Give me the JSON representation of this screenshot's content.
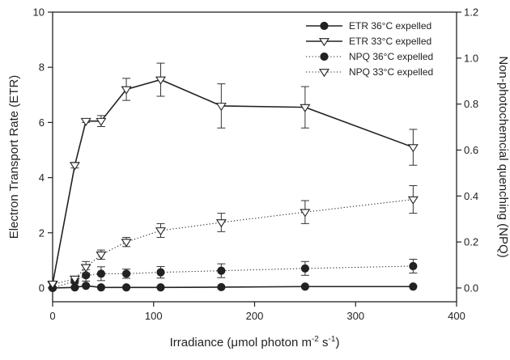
{
  "chart_data": {
    "type": "line",
    "xlabel": "Irradiance (μmol photon m-2 s-1)",
    "ylabel_left": "Electron Transport Rate (ETR)",
    "ylabel_right": "Non-photochemcial quenching (NPQ)",
    "xlim": [
      0,
      400
    ],
    "ylim_left": [
      -0.5,
      10
    ],
    "ylim_right": [
      -0.06,
      1.2
    ],
    "x_ticks": [
      0,
      100,
      200,
      300,
      400
    ],
    "y_left_ticks": [
      0,
      2,
      4,
      6,
      8,
      10
    ],
    "y_right_ticks": [
      "0.0",
      "0.2",
      "0.4",
      "0.6",
      "0.8",
      "1.0",
      "1.2"
    ],
    "grid": false,
    "legend_position": "top-right",
    "series": [
      {
        "name": "ETR 36°C expelled",
        "axis": "left",
        "marker": "filled-circle",
        "line": "solid",
        "x": [
          0,
          22,
          33,
          48,
          73,
          107,
          167,
          250,
          357
        ],
        "y": [
          0,
          0.02,
          0.08,
          0.02,
          0.02,
          0.02,
          0.03,
          0.05,
          0.05
        ],
        "err": [
          0,
          0,
          0,
          0,
          0,
          0,
          0,
          0,
          0
        ]
      },
      {
        "name": "ETR 33°C expelled",
        "axis": "left",
        "marker": "open-triangle-down",
        "line": "solid",
        "x": [
          0,
          22,
          33,
          48,
          73,
          107,
          167,
          250,
          357
        ],
        "y": [
          0.15,
          4.45,
          6.05,
          6.05,
          7.2,
          7.55,
          6.6,
          6.55,
          5.1
        ],
        "err": [
          0,
          0.1,
          0.05,
          0.2,
          0.4,
          0.6,
          0.8,
          0.75,
          0.65
        ]
      },
      {
        "name": "NPQ 36°C expelled",
        "axis": "right",
        "marker": "filled-circle",
        "line": "dotted",
        "x": [
          0,
          22,
          33,
          48,
          73,
          107,
          167,
          250,
          357
        ],
        "y": [
          0.0,
          0.03,
          0.055,
          0.062,
          0.062,
          0.068,
          0.075,
          0.085,
          0.095
        ],
        "err": [
          0,
          0.01,
          0.025,
          0.03,
          0.02,
          0.025,
          0.03,
          0.03,
          0.03
        ]
      },
      {
        "name": "NPQ 33°C expelled",
        "axis": "right",
        "marker": "open-triangle-down",
        "line": "dotted",
        "x": [
          0,
          22,
          33,
          48,
          73,
          107,
          167,
          250,
          357
        ],
        "y": [
          0.015,
          0.04,
          0.09,
          0.145,
          0.2,
          0.25,
          0.285,
          0.33,
          0.385
        ],
        "err": [
          0,
          0.01,
          0.025,
          0.02,
          0.02,
          0.03,
          0.04,
          0.05,
          0.06
        ]
      }
    ]
  }
}
